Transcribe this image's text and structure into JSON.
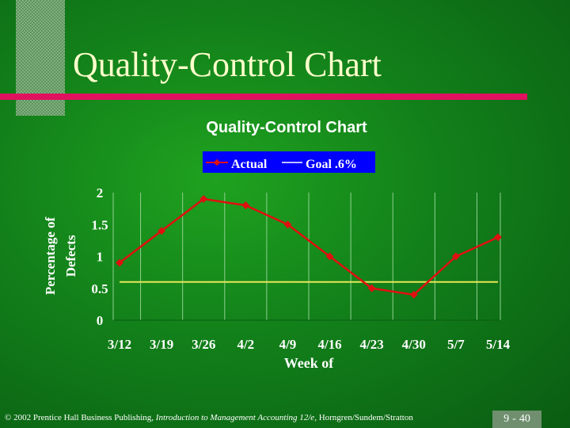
{
  "slide": {
    "title": "Quality-Control Chart",
    "footer": {
      "copyright": "© 2002 Prentice Hall Business Publishing, ",
      "book": "Introduction to Management Accounting 12/e,",
      "authors": " Horngren/Sundem/Stratton"
    },
    "page_number": {
      "chapter": "9",
      "separator": "-",
      "page": "40"
    }
  },
  "colors": {
    "background": "#12801a",
    "title_text": "#ffffcc",
    "accent_bar": "#e0115f",
    "actual_series": "#e01010",
    "goal_series": "#e8e858"
  },
  "chart_data": {
    "type": "line",
    "title": "Quality-Control Chart",
    "xlabel": "Week of",
    "ylabel": "Percentage of Defects",
    "categories": [
      "3/12",
      "3/19",
      "3/26",
      "4/2",
      "4/9",
      "4/16",
      "4/23",
      "4/30",
      "5/7",
      "5/14"
    ],
    "y_ticks": [
      "2",
      "1.5",
      "1",
      "0.5",
      "0"
    ],
    "ylim": [
      0,
      2
    ],
    "grid": "vertical",
    "legend_position": "top-center",
    "series": [
      {
        "name": "Actual",
        "values": [
          0.9,
          1.4,
          1.9,
          1.8,
          1.5,
          1.0,
          0.5,
          0.4,
          1.0,
          1.3
        ],
        "marker": "diamond"
      },
      {
        "name": "Goal .6%",
        "values": [
          0.6,
          0.6,
          0.6,
          0.6,
          0.6,
          0.6,
          0.6,
          0.6,
          0.6,
          0.6
        ],
        "marker": "none"
      }
    ]
  }
}
